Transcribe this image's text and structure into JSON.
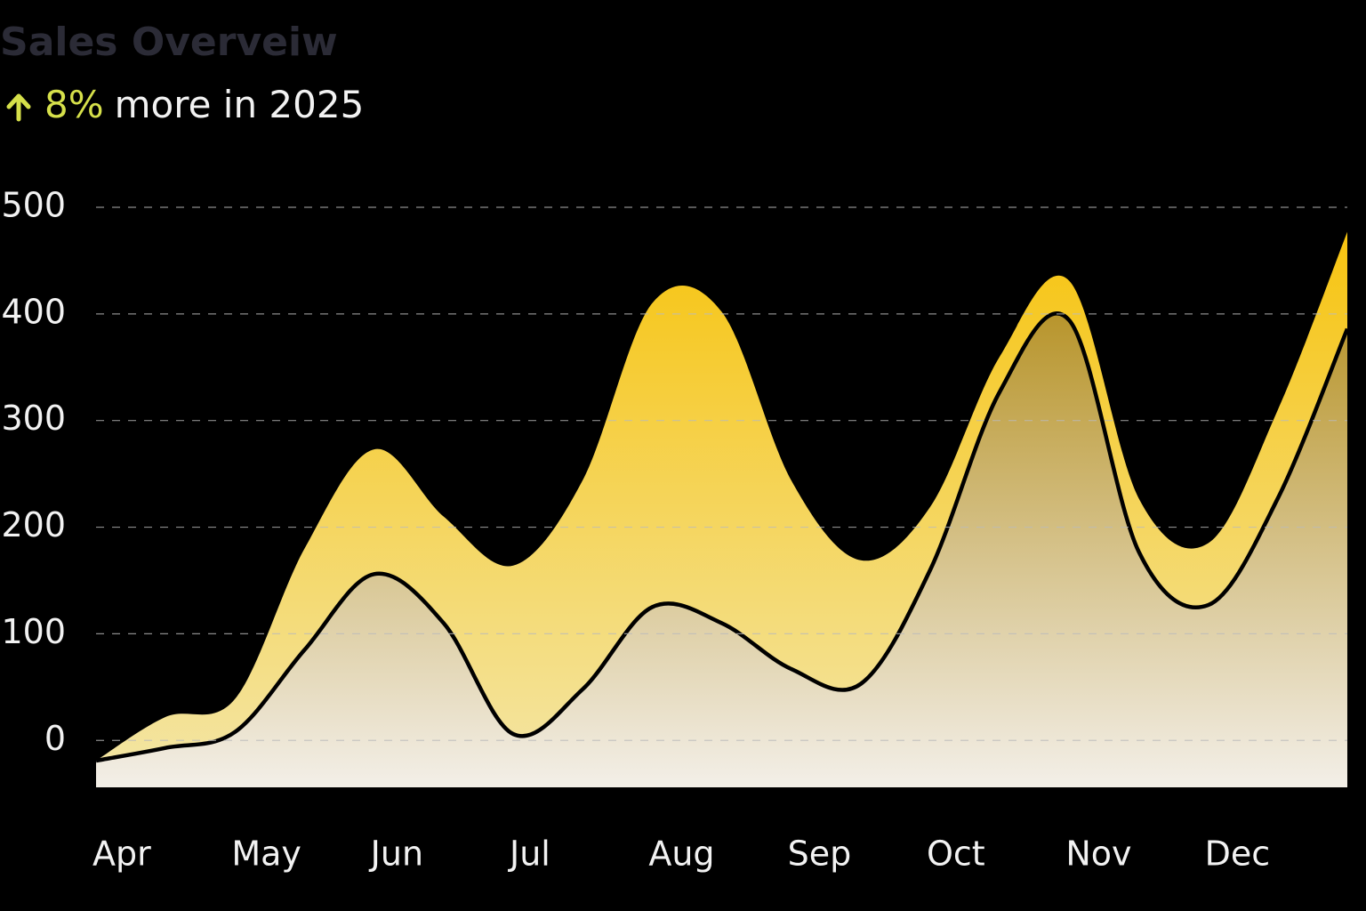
{
  "chart_data": {
    "type": "area",
    "title": "Sales Overveiw",
    "highlight": "8%",
    "subtitle": "more in 2025",
    "categories": [
      "Apr",
      null,
      "May",
      null,
      "Jun",
      null,
      "Jul",
      null,
      "Aug",
      null,
      "Sep",
      null,
      "Oct",
      null,
      "Nov",
      null,
      "Dec",
      null,
      null
    ],
    "series": [
      {
        "color": "#f7c410",
        "values": [
          -19,
          22,
          39,
          180,
          273,
          210,
          164,
          244,
          410,
          402,
          244,
          169,
          219,
          360,
          431,
          227,
          185,
          310,
          477
        ]
      },
      {
        "color": "#b8952c",
        "line_color": "#000000",
        "values": [
          -19,
          -7,
          8,
          85,
          156,
          110,
          6,
          48,
          125,
          110,
          67,
          53,
          160,
          327,
          394,
          177,
          127,
          227,
          386
        ]
      }
    ],
    "ylim": [
      -44,
      500
    ],
    "yticks": [
      0,
      100,
      200,
      300,
      400,
      500
    ],
    "grid": true
  }
}
